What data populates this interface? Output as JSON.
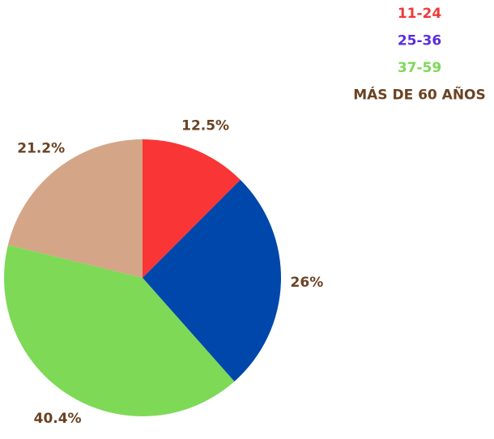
{
  "chart_data": {
    "type": "pie",
    "categories": [
      "11-24",
      "25-36",
      "37-59",
      "MÁS DE 60 AÑOS"
    ],
    "values": [
      12.5,
      26,
      40.4,
      21.2
    ],
    "value_labels": [
      "12.5%",
      "26%",
      "40.4%",
      "21.2%"
    ],
    "colors": [
      "#f93535",
      "#0047ab",
      "#7ed957",
      "#d4a586"
    ],
    "legend_colors": [
      "#f03a3a",
      "#5b2de0",
      "#7ed957",
      "#6b4222"
    ],
    "label_color": "#6b4222",
    "legend": "top-right"
  }
}
